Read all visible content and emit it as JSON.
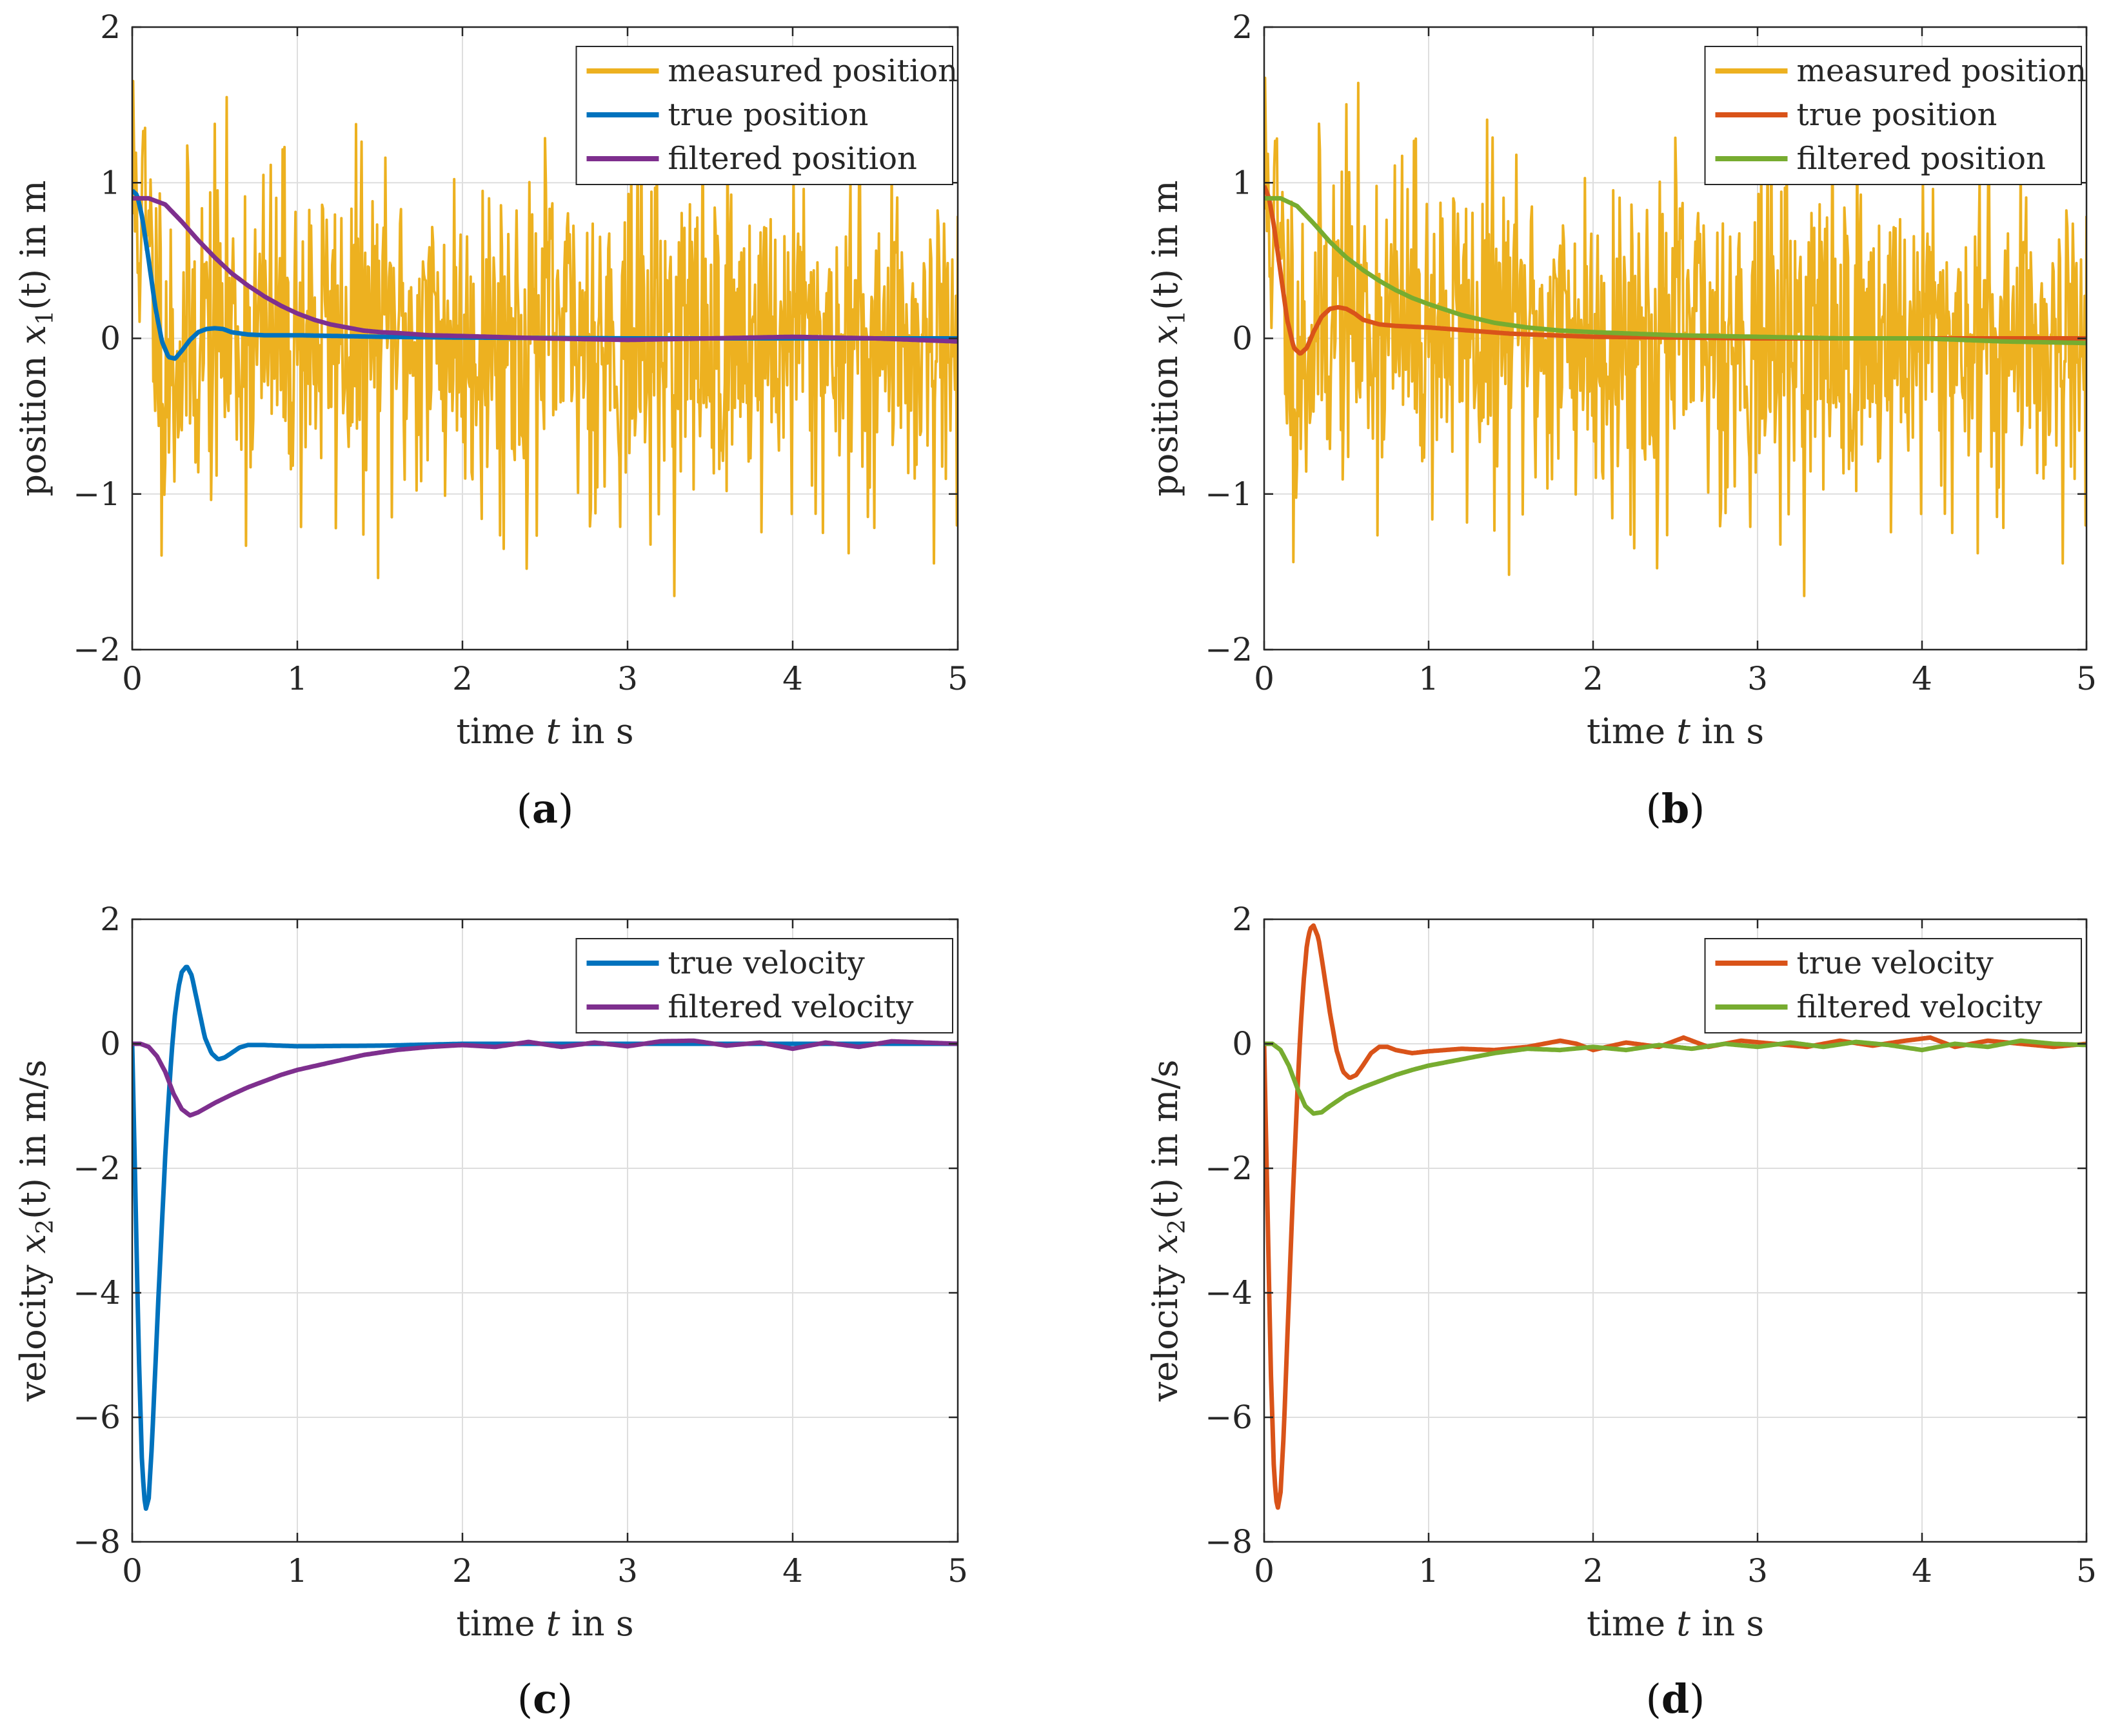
{
  "colors": {
    "measured": "#EDB120",
    "blue": "#0072BD",
    "purple": "#7E2F8E",
    "orange": "#D95319",
    "green": "#77AC30"
  },
  "chart_data": [
    {
      "id": "a",
      "type": "line",
      "caption_letter": "a",
      "xlabel": {
        "pre": "time ",
        "var": "t",
        "post": " in s"
      },
      "ylabel": {
        "pre": "position ",
        "var": "x",
        "sub": "1",
        "post": "(t) in m"
      },
      "xlim": [
        0,
        5
      ],
      "ylim": [
        -2,
        2
      ],
      "xticks": [
        0,
        1,
        2,
        3,
        4,
        5
      ],
      "yticks": [
        -2,
        -1,
        0,
        1,
        2
      ],
      "grid": true,
      "legend_position": "top-right",
      "series": [
        {
          "name": "measured position",
          "color": "measured",
          "kind": "noise",
          "std": 0.55,
          "seed": 11
        },
        {
          "name": "true position",
          "color": "blue",
          "x": [
            0,
            0.03,
            0.06,
            0.1,
            0.14,
            0.18,
            0.22,
            0.26,
            0.3,
            0.35,
            0.4,
            0.45,
            0.5,
            0.55,
            0.6,
            0.7,
            0.8,
            1.0,
            1.5,
            2.0,
            3.0,
            4.0,
            5.0
          ],
          "y": [
            0.95,
            0.92,
            0.78,
            0.5,
            0.2,
            -0.02,
            -0.12,
            -0.13,
            -0.08,
            -0.01,
            0.04,
            0.06,
            0.065,
            0.06,
            0.04,
            0.025,
            0.02,
            0.02,
            0.01,
            0.005,
            0.0,
            0.0,
            0.0
          ]
        },
        {
          "name": "filtered position",
          "color": "purple",
          "x": [
            0,
            0.1,
            0.2,
            0.3,
            0.4,
            0.5,
            0.6,
            0.7,
            0.8,
            0.9,
            1.0,
            1.1,
            1.2,
            1.3,
            1.4,
            1.5,
            1.6,
            1.8,
            2.0,
            2.5,
            3.0,
            3.5,
            4.0,
            4.5,
            5.0
          ],
          "y": [
            0.9,
            0.9,
            0.86,
            0.75,
            0.63,
            0.52,
            0.42,
            0.34,
            0.27,
            0.21,
            0.16,
            0.12,
            0.09,
            0.07,
            0.05,
            0.04,
            0.035,
            0.02,
            0.015,
            0.0,
            -0.01,
            0.0,
            0.01,
            0.0,
            -0.02
          ]
        }
      ]
    },
    {
      "id": "b",
      "type": "line",
      "caption_letter": "b",
      "xlabel": {
        "pre": "time ",
        "var": "t",
        "post": " in s"
      },
      "ylabel": {
        "pre": "position ",
        "var": "x",
        "sub": "1",
        "post": "(t) in m"
      },
      "xlim": [
        0,
        5
      ],
      "ylim": [
        -2,
        2
      ],
      "xticks": [
        0,
        1,
        2,
        3,
        4,
        5
      ],
      "yticks": [
        -2,
        -1,
        0,
        1,
        2
      ],
      "grid": true,
      "legend_position": "top-right",
      "series": [
        {
          "name": "measured position",
          "color": "measured",
          "kind": "noise",
          "std": 0.55,
          "seed": 11
        },
        {
          "name": "true position",
          "color": "orange",
          "x": [
            0,
            0.03,
            0.06,
            0.1,
            0.14,
            0.18,
            0.22,
            0.26,
            0.3,
            0.35,
            0.4,
            0.45,
            0.5,
            0.55,
            0.6,
            0.7,
            0.8,
            1.0,
            1.5,
            2.0,
            3.0,
            4.0,
            5.0
          ],
          "y": [
            0.98,
            0.9,
            0.72,
            0.42,
            0.12,
            -0.06,
            -0.1,
            -0.06,
            0.04,
            0.14,
            0.19,
            0.2,
            0.19,
            0.16,
            0.12,
            0.09,
            0.08,
            0.07,
            0.03,
            0.01,
            0.0,
            0.0,
            0.0
          ]
        },
        {
          "name": "filtered position",
          "color": "green",
          "x": [
            0,
            0.1,
            0.2,
            0.3,
            0.4,
            0.5,
            0.6,
            0.7,
            0.8,
            0.9,
            1.0,
            1.2,
            1.4,
            1.6,
            1.8,
            2.0,
            2.5,
            3.0,
            3.5,
            4.0,
            4.5,
            5.0
          ],
          "y": [
            0.9,
            0.9,
            0.85,
            0.74,
            0.62,
            0.52,
            0.44,
            0.37,
            0.31,
            0.26,
            0.22,
            0.15,
            0.1,
            0.07,
            0.05,
            0.04,
            0.02,
            0.01,
            0.0,
            0.0,
            -0.02,
            -0.03
          ]
        }
      ]
    },
    {
      "id": "c",
      "type": "line",
      "caption_letter": "c",
      "xlabel": {
        "pre": "time ",
        "var": "t",
        "post": " in s"
      },
      "ylabel": {
        "pre": "velocity ",
        "var": "x",
        "sub": "2",
        "post": "(t) in m/s"
      },
      "xlim": [
        0,
        5
      ],
      "ylim": [
        -8,
        2
      ],
      "xticks": [
        0,
        1,
        2,
        3,
        4,
        5
      ],
      "yticks": [
        -8,
        -6,
        -4,
        -2,
        0,
        2
      ],
      "grid": true,
      "legend_position": "top-right",
      "series": [
        {
          "name": "true velocity",
          "color": "blue",
          "x": [
            0,
            0.02,
            0.04,
            0.06,
            0.08,
            0.1,
            0.12,
            0.14,
            0.16,
            0.18,
            0.2,
            0.22,
            0.24,
            0.26,
            0.28,
            0.3,
            0.33,
            0.36,
            0.4,
            0.44,
            0.48,
            0.52,
            0.56,
            0.6,
            0.65,
            0.7,
            0.8,
            0.9,
            1.0,
            1.5,
            2.0,
            3.0,
            4.0,
            5.0
          ],
          "y": [
            0,
            -2.5,
            -5.0,
            -6.8,
            -7.5,
            -7.3,
            -6.4,
            -5.2,
            -4.0,
            -2.9,
            -1.8,
            -0.9,
            -0.1,
            0.5,
            0.9,
            1.15,
            1.25,
            1.1,
            0.6,
            0.1,
            -0.15,
            -0.25,
            -0.22,
            -0.15,
            -0.06,
            -0.02,
            -0.02,
            -0.03,
            -0.04,
            -0.03,
            0.0,
            0.0,
            0.0,
            0.0
          ]
        },
        {
          "name": "filtered velocity",
          "color": "purple",
          "x": [
            0,
            0.05,
            0.1,
            0.15,
            0.2,
            0.25,
            0.3,
            0.35,
            0.4,
            0.5,
            0.6,
            0.7,
            0.8,
            0.9,
            1.0,
            1.2,
            1.4,
            1.6,
            1.8,
            2.0,
            2.2,
            2.4,
            2.6,
            2.8,
            3.0,
            3.2,
            3.4,
            3.6,
            3.8,
            4.0,
            4.2,
            4.4,
            4.6,
            4.8,
            5.0
          ],
          "y": [
            0,
            0.0,
            -0.05,
            -0.2,
            -0.45,
            -0.8,
            -1.05,
            -1.15,
            -1.1,
            -0.95,
            -0.82,
            -0.7,
            -0.6,
            -0.5,
            -0.42,
            -0.3,
            -0.18,
            -0.1,
            -0.05,
            -0.02,
            -0.05,
            0.03,
            -0.05,
            0.02,
            -0.04,
            0.04,
            0.05,
            -0.03,
            0.02,
            -0.08,
            0.02,
            -0.05,
            0.04,
            0.02,
            0.0
          ]
        }
      ]
    },
    {
      "id": "d",
      "type": "line",
      "caption_letter": "d",
      "xlabel": {
        "pre": "time ",
        "var": "t",
        "post": " in s"
      },
      "ylabel": {
        "pre": "velocity ",
        "var": "x",
        "sub": "2",
        "post": "(t) in m/s"
      },
      "xlim": [
        0,
        5
      ],
      "ylim": [
        -8,
        2
      ],
      "xticks": [
        0,
        1,
        2,
        3,
        4,
        5
      ],
      "yticks": [
        -8,
        -6,
        -4,
        -2,
        0,
        2
      ],
      "grid": true,
      "legend_position": "top-right",
      "series": [
        {
          "name": "true velocity",
          "color": "orange",
          "x": [
            0,
            0.02,
            0.04,
            0.06,
            0.08,
            0.1,
            0.12,
            0.14,
            0.16,
            0.18,
            0.2,
            0.22,
            0.24,
            0.26,
            0.28,
            0.3,
            0.33,
            0.36,
            0.4,
            0.44,
            0.48,
            0.52,
            0.56,
            0.6,
            0.65,
            0.7,
            0.75,
            0.8,
            0.9,
            1.0,
            1.2,
            1.4,
            1.6,
            1.8,
            1.9,
            2.0,
            2.2,
            2.4,
            2.55,
            2.7,
            2.9,
            3.1,
            3.3,
            3.5,
            3.7,
            3.9,
            4.05,
            4.2,
            4.4,
            4.6,
            4.8,
            5.0
          ],
          "y": [
            0,
            -2.6,
            -5.2,
            -6.9,
            -7.5,
            -7.2,
            -6.2,
            -4.8,
            -3.4,
            -2.1,
            -0.9,
            0.2,
            1.0,
            1.6,
            1.85,
            1.9,
            1.7,
            1.2,
            0.5,
            -0.1,
            -0.45,
            -0.55,
            -0.5,
            -0.35,
            -0.15,
            -0.05,
            -0.05,
            -0.1,
            -0.15,
            -0.12,
            -0.08,
            -0.1,
            -0.05,
            0.05,
            0.0,
            -0.1,
            0.02,
            -0.05,
            0.1,
            -0.05,
            0.05,
            0.0,
            -0.05,
            0.05,
            -0.03,
            0.05,
            0.1,
            -0.05,
            0.05,
            0.0,
            -0.05,
            0.0
          ]
        },
        {
          "name": "filtered velocity",
          "color": "green",
          "x": [
            0,
            0.05,
            0.1,
            0.15,
            0.2,
            0.25,
            0.3,
            0.35,
            0.4,
            0.5,
            0.6,
            0.7,
            0.8,
            0.9,
            1.0,
            1.2,
            1.4,
            1.6,
            1.8,
            2.0,
            2.2,
            2.4,
            2.6,
            2.8,
            3.0,
            3.2,
            3.4,
            3.6,
            3.8,
            4.0,
            4.2,
            4.4,
            4.6,
            4.8,
            5.0
          ],
          "y": [
            0,
            0.0,
            -0.1,
            -0.35,
            -0.7,
            -1.0,
            -1.12,
            -1.1,
            -1.0,
            -0.82,
            -0.7,
            -0.6,
            -0.5,
            -0.42,
            -0.35,
            -0.25,
            -0.15,
            -0.08,
            -0.1,
            -0.05,
            -0.1,
            -0.02,
            -0.08,
            0.0,
            -0.05,
            0.02,
            -0.05,
            0.03,
            -0.02,
            -0.1,
            0.0,
            -0.05,
            0.05,
            0.0,
            -0.02
          ]
        }
      ]
    }
  ]
}
